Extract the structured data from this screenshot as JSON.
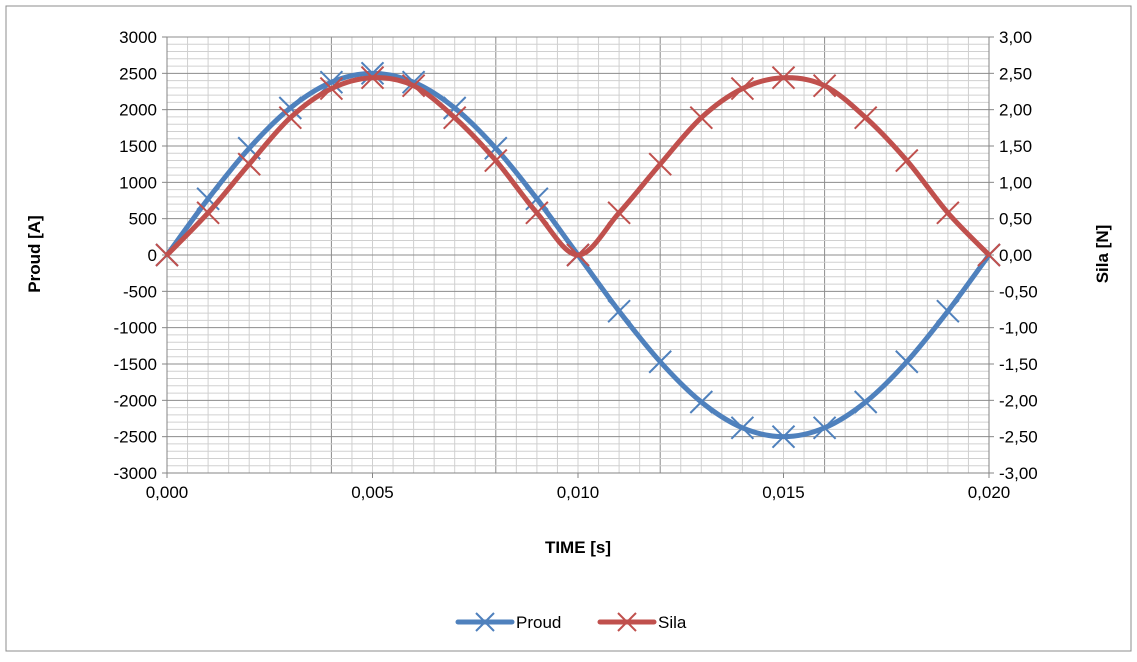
{
  "chart_data": {
    "type": "line",
    "title": "",
    "xlabel": "TIME [s]",
    "ylabel_left": "Proud [A]",
    "ylabel_right": "Sila [N]",
    "xlim": [
      0,
      0.02
    ],
    "ylim_left": [
      -3000,
      3000
    ],
    "ylim_right": [
      -3,
      3
    ],
    "x_ticks": [
      "0,000",
      "0,005",
      "0,010",
      "0,015",
      "0,020"
    ],
    "y_left_ticks": [
      "3000",
      "2500",
      "2000",
      "1500",
      "1000",
      "500",
      "0",
      "-500",
      "-1000",
      "-1500",
      "-2000",
      "-2500",
      "-3000"
    ],
    "y_right_ticks": [
      "3,00",
      "2,50",
      "2,00",
      "1,50",
      "1,00",
      "0,50",
      "0,00",
      "-0,50",
      "-1,00",
      "-1,50",
      "-2,00",
      "-2,50",
      "-3,00"
    ],
    "grid": true,
    "legend_position": "bottom",
    "x": [
      0,
      0.001,
      0.002,
      0.003,
      0.004,
      0.005,
      0.006,
      0.007,
      0.008,
      0.009,
      0.01,
      0.011,
      0.012,
      0.013,
      0.014,
      0.015,
      0.016,
      0.017,
      0.018,
      0.019,
      0.02
    ],
    "series": [
      {
        "name": "Proud",
        "axis": "left",
        "color": "#4f81bd",
        "values": [
          0,
          773,
          1469,
          2023,
          2378,
          2500,
          2378,
          2023,
          1469,
          773,
          0,
          -773,
          -1469,
          -2023,
          -2378,
          -2500,
          -2378,
          -2023,
          -1469,
          -773,
          0
        ]
      },
      {
        "name": "Sila",
        "axis": "right",
        "color": "#c0504d",
        "values": [
          0,
          0.58,
          1.25,
          1.89,
          2.29,
          2.44,
          2.33,
          1.89,
          1.3,
          0.58,
          0,
          0.58,
          1.25,
          1.89,
          2.29,
          2.44,
          2.33,
          1.89,
          1.3,
          0.58,
          0
        ]
      }
    ]
  }
}
